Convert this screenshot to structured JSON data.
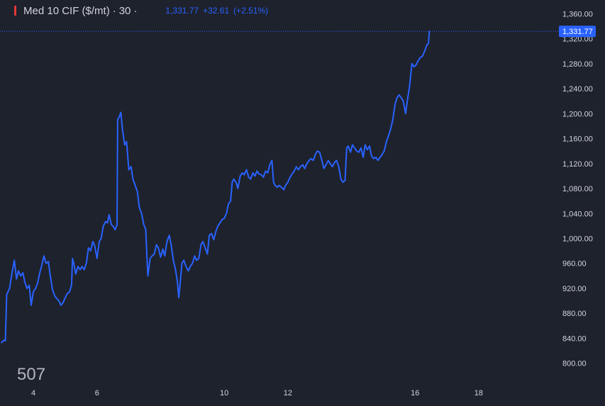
{
  "header": {
    "symbol": "Med 10 CIF ($/mt)",
    "separator": "·",
    "interval": "30",
    "last": "1,331.77",
    "change": "+32.61",
    "change_pct": "(+2.51%)"
  },
  "watermark": "507",
  "colors": {
    "background": "#1e222d",
    "line": "#2962ff",
    "axis_text": "#d1d4dc",
    "indicator_red": "#e53935"
  },
  "chart_data": {
    "type": "line",
    "title": "Med 10 CIF ($/mt)",
    "xlabel": "",
    "ylabel": "",
    "grid": false,
    "xlim": [
      2.95,
      20.5
    ],
    "ylim": [
      769,
      1382
    ],
    "x_ticks": [
      {
        "value": 4,
        "label": "4"
      },
      {
        "value": 6,
        "label": "6"
      },
      {
        "value": 10,
        "label": "10"
      },
      {
        "value": 12,
        "label": "12"
      },
      {
        "value": 16,
        "label": "16"
      },
      {
        "value": 18,
        "label": "18"
      }
    ],
    "y_ticks": [
      {
        "value": 800,
        "label": "800.00"
      },
      {
        "value": 840,
        "label": "840.00"
      },
      {
        "value": 880,
        "label": "880.00"
      },
      {
        "value": 920,
        "label": "920.00"
      },
      {
        "value": 960,
        "label": "960.00"
      },
      {
        "value": 1000,
        "label": "1,000.00"
      },
      {
        "value": 1040,
        "label": "1,040.00"
      },
      {
        "value": 1080,
        "label": "1,080.00"
      },
      {
        "value": 1120,
        "label": "1,120.00"
      },
      {
        "value": 1160,
        "label": "1,160.00"
      },
      {
        "value": 1200,
        "label": "1,200.00"
      },
      {
        "value": 1240,
        "label": "1,240.00"
      },
      {
        "value": 1280,
        "label": "1,280.00"
      },
      {
        "value": 1320,
        "label": "1,320.00"
      },
      {
        "value": 1360,
        "label": "1,360.00"
      }
    ],
    "last_price": {
      "value": 1331.77,
      "label": "1,331.77"
    },
    "series": [
      {
        "points": [
          [
            3.0,
            833
          ],
          [
            3.07,
            837
          ],
          [
            3.12,
            836
          ],
          [
            3.16,
            910
          ],
          [
            3.25,
            920
          ],
          [
            3.33,
            945
          ],
          [
            3.4,
            965
          ],
          [
            3.47,
            935
          ],
          [
            3.53,
            948
          ],
          [
            3.6,
            940
          ],
          [
            3.67,
            945
          ],
          [
            3.73,
            930
          ],
          [
            3.8,
            920
          ],
          [
            3.87,
            925
          ],
          [
            3.93,
            893
          ],
          [
            4.0,
            915
          ],
          [
            4.07,
            920
          ],
          [
            4.13,
            928
          ],
          [
            4.2,
            945
          ],
          [
            4.27,
            958
          ],
          [
            4.33,
            972
          ],
          [
            4.4,
            960
          ],
          [
            4.47,
            963
          ],
          [
            4.53,
            940
          ],
          [
            4.6,
            918
          ],
          [
            4.67,
            908
          ],
          [
            4.73,
            904
          ],
          [
            4.8,
            900
          ],
          [
            4.87,
            893
          ],
          [
            4.93,
            897
          ],
          [
            5.0,
            905
          ],
          [
            5.07,
            912
          ],
          [
            5.13,
            914
          ],
          [
            5.2,
            925
          ],
          [
            5.23,
            968
          ],
          [
            5.27,
            960
          ],
          [
            5.33,
            943
          ],
          [
            5.4,
            955
          ],
          [
            5.47,
            950
          ],
          [
            5.53,
            955
          ],
          [
            5.6,
            950
          ],
          [
            5.67,
            962
          ],
          [
            5.73,
            985
          ],
          [
            5.8,
            980
          ],
          [
            5.87,
            995
          ],
          [
            5.93,
            988
          ],
          [
            6.0,
            968
          ],
          [
            6.07,
            995
          ],
          [
            6.13,
            1000
          ],
          [
            6.2,
            1020
          ],
          [
            6.27,
            1027
          ],
          [
            6.33,
            1025
          ],
          [
            6.38,
            1038
          ],
          [
            6.45,
            1022
          ],
          [
            6.5,
            1020
          ],
          [
            6.57,
            1014
          ],
          [
            6.63,
            1022
          ],
          [
            6.65,
            1190
          ],
          [
            6.7,
            1195
          ],
          [
            6.75,
            1202
          ],
          [
            6.8,
            1175
          ],
          [
            6.87,
            1150
          ],
          [
            6.93,
            1155
          ],
          [
            7.0,
            1110
          ],
          [
            7.07,
            1115
          ],
          [
            7.13,
            1095
          ],
          [
            7.2,
            1085
          ],
          [
            7.27,
            1075
          ],
          [
            7.33,
            1050
          ],
          [
            7.4,
            1040
          ],
          [
            7.47,
            1022
          ],
          [
            7.53,
            1015
          ],
          [
            7.57,
            970
          ],
          [
            7.6,
            940
          ],
          [
            7.67,
            968
          ],
          [
            7.73,
            972
          ],
          [
            7.8,
            975
          ],
          [
            7.87,
            990
          ],
          [
            7.93,
            985
          ],
          [
            8.0,
            970
          ],
          [
            8.07,
            983
          ],
          [
            8.13,
            972
          ],
          [
            8.2,
            995
          ],
          [
            8.27,
            1005
          ],
          [
            8.33,
            990
          ],
          [
            8.4,
            965
          ],
          [
            8.47,
            950
          ],
          [
            8.53,
            930
          ],
          [
            8.57,
            905
          ],
          [
            8.6,
            920
          ],
          [
            8.67,
            960
          ],
          [
            8.73,
            965
          ],
          [
            8.8,
            955
          ],
          [
            8.87,
            948
          ],
          [
            8.93,
            955
          ],
          [
            9.0,
            960
          ],
          [
            9.07,
            972
          ],
          [
            9.13,
            965
          ],
          [
            9.2,
            968
          ],
          [
            9.27,
            990
          ],
          [
            9.33,
            995
          ],
          [
            9.4,
            985
          ],
          [
            9.47,
            975
          ],
          [
            9.53,
            1005
          ],
          [
            9.6,
            1008
          ],
          [
            9.67,
            998
          ],
          [
            9.73,
            1010
          ],
          [
            9.8,
            1020
          ],
          [
            9.87,
            1025
          ],
          [
            9.93,
            1030
          ],
          [
            10.0,
            1032
          ],
          [
            10.07,
            1040
          ],
          [
            10.13,
            1055
          ],
          [
            10.2,
            1060
          ],
          [
            10.25,
            1090
          ],
          [
            10.3,
            1095
          ],
          [
            10.37,
            1090
          ],
          [
            10.43,
            1080
          ],
          [
            10.5,
            1100
          ],
          [
            10.57,
            1105
          ],
          [
            10.63,
            1102
          ],
          [
            10.7,
            1110
          ],
          [
            10.77,
            1098
          ],
          [
            10.83,
            1095
          ],
          [
            10.9,
            1105
          ],
          [
            10.97,
            1100
          ],
          [
            11.03,
            1108
          ],
          [
            11.1,
            1103
          ],
          [
            11.17,
            1102
          ],
          [
            11.23,
            1098
          ],
          [
            11.3,
            1108
          ],
          [
            11.37,
            1105
          ],
          [
            11.43,
            1118
          ],
          [
            11.5,
            1125
          ],
          [
            11.55,
            1090
          ],
          [
            11.6,
            1085
          ],
          [
            11.67,
            1082
          ],
          [
            11.73,
            1085
          ],
          [
            11.8,
            1082
          ],
          [
            11.87,
            1078
          ],
          [
            11.93,
            1085
          ],
          [
            12.0,
            1090
          ],
          [
            12.07,
            1098
          ],
          [
            12.13,
            1103
          ],
          [
            12.2,
            1108
          ],
          [
            12.27,
            1115
          ],
          [
            12.33,
            1110
          ],
          [
            12.4,
            1115
          ],
          [
            12.47,
            1118
          ],
          [
            12.53,
            1112
          ],
          [
            12.6,
            1120
          ],
          [
            12.67,
            1125
          ],
          [
            12.73,
            1128
          ],
          [
            12.8,
            1125
          ],
          [
            12.87,
            1135
          ],
          [
            12.93,
            1140
          ],
          [
            13.0,
            1138
          ],
          [
            13.07,
            1125
          ],
          [
            13.13,
            1112
          ],
          [
            13.2,
            1118
          ],
          [
            13.27,
            1125
          ],
          [
            13.33,
            1120
          ],
          [
            13.4,
            1115
          ],
          [
            13.47,
            1122
          ],
          [
            13.53,
            1125
          ],
          [
            13.6,
            1115
          ],
          [
            13.67,
            1095
          ],
          [
            13.73,
            1090
          ],
          [
            13.8,
            1093
          ],
          [
            13.85,
            1145
          ],
          [
            13.9,
            1148
          ],
          [
            13.97,
            1138
          ],
          [
            14.03,
            1150
          ],
          [
            14.1,
            1145
          ],
          [
            14.17,
            1140
          ],
          [
            14.23,
            1138
          ],
          [
            14.3,
            1145
          ],
          [
            14.37,
            1130
          ],
          [
            14.43,
            1150
          ],
          [
            14.5,
            1142
          ],
          [
            14.57,
            1148
          ],
          [
            14.63,
            1132
          ],
          [
            14.7,
            1128
          ],
          [
            14.77,
            1130
          ],
          [
            14.83,
            1125
          ],
          [
            14.9,
            1130
          ],
          [
            14.97,
            1135
          ],
          [
            15.03,
            1140
          ],
          [
            15.1,
            1155
          ],
          [
            15.17,
            1165
          ],
          [
            15.23,
            1175
          ],
          [
            15.3,
            1190
          ],
          [
            15.37,
            1215
          ],
          [
            15.43,
            1225
          ],
          [
            15.5,
            1230
          ],
          [
            15.57,
            1225
          ],
          [
            15.63,
            1220
          ],
          [
            15.7,
            1200
          ],
          [
            15.77,
            1225
          ],
          [
            15.83,
            1245
          ],
          [
            15.9,
            1280
          ],
          [
            15.97,
            1275
          ],
          [
            16.03,
            1278
          ],
          [
            16.1,
            1285
          ],
          [
            16.17,
            1290
          ],
          [
            16.23,
            1292
          ],
          [
            16.3,
            1300
          ],
          [
            16.37,
            1310
          ],
          [
            16.42,
            1312
          ],
          [
            16.45,
            1331.77
          ]
        ]
      }
    ]
  }
}
